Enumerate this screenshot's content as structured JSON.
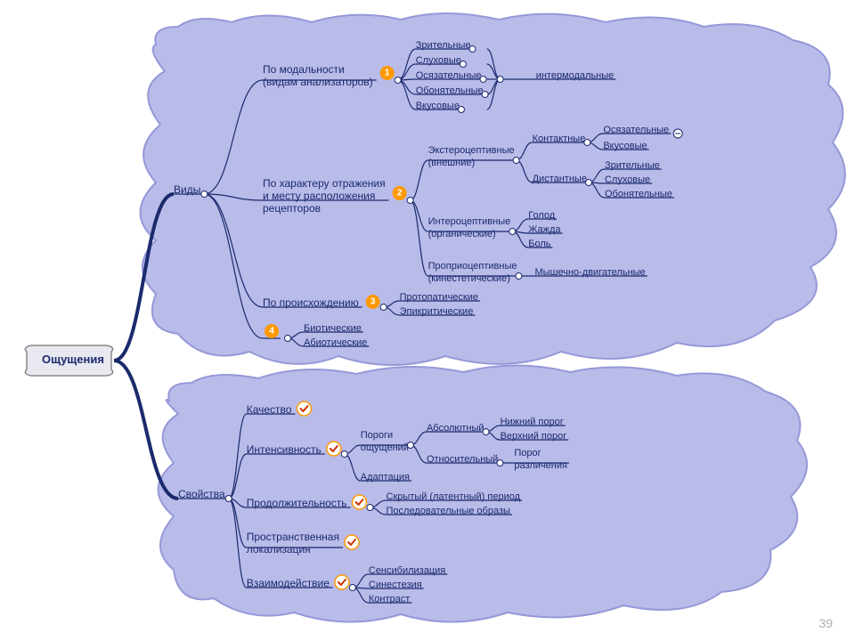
{
  "diagram_type": "mindmap",
  "colors": {
    "background": "#ffffff",
    "cloud_fill": "#b6b8e8",
    "cloud_stroke": "#9193d6",
    "text": "#1a2a6c",
    "edge": "#1a2a6c",
    "badge_fill": "#ff9900",
    "badge_text": "#ffffff",
    "check_stroke": "#ff9900",
    "check_mark": "#cc3300",
    "root_fill": "#e8e8f0",
    "root_stroke": "#888888",
    "page_num_color": "#b0b0b0"
  },
  "typography": {
    "node_fontsize": 12,
    "leaf_fontsize": 11,
    "root_fontsize": 13
  },
  "page_number": "39",
  "root": {
    "label": "Ощущения"
  },
  "branches": [
    {
      "label": "Виды",
      "children": [
        {
          "label_lines": [
            "По модальности",
            "(видам анализаторов)"
          ],
          "badge": "1",
          "children": [
            {
              "label": "Зрительные"
            },
            {
              "label": "Слуховые"
            },
            {
              "label": "Осязательные",
              "children": [
                {
                  "label": "интермодальные"
                }
              ],
              "shared_child": true
            },
            {
              "label": "Обонятельные"
            },
            {
              "label": "Вкусовые"
            }
          ]
        },
        {
          "label_lines": [
            "По характеру отражения",
            "и месту расположения",
            "рецепторов"
          ],
          "badge": "2",
          "children": [
            {
              "label_lines": [
                "Экстероцептивные",
                "(внешние)"
              ],
              "children": [
                {
                  "label": "Контактные",
                  "children": [
                    {
                      "label": "Осязательные",
                      "toggle": true
                    },
                    {
                      "label": "Вкусовые"
                    }
                  ]
                },
                {
                  "label": "Дистантные",
                  "children": [
                    {
                      "label": "Зрительные"
                    },
                    {
                      "label": "Слуховые"
                    },
                    {
                      "label": "Обонятельные"
                    }
                  ]
                }
              ]
            },
            {
              "label_lines": [
                "Интероцептивные",
                "(органические)"
              ],
              "children": [
                {
                  "label": "Голод"
                },
                {
                  "label": "Жажда"
                },
                {
                  "label": "Боль"
                }
              ]
            },
            {
              "label_lines": [
                "Проприоцептивные",
                "(кинестетические)"
              ],
              "children": [
                {
                  "label": "Мышечно-двигательные"
                }
              ]
            }
          ]
        },
        {
          "label": "По происхождению",
          "badge": "3",
          "children": [
            {
              "label": "Протопатические"
            },
            {
              "label": "Эпикритические"
            }
          ]
        },
        {
          "label": "",
          "badge": "4",
          "children": [
            {
              "label": "Биотические"
            },
            {
              "label": "Абиотические"
            }
          ]
        }
      ]
    },
    {
      "label": "Свойства",
      "children": [
        {
          "label": "Качество",
          "check": true
        },
        {
          "label": "Интенсивность",
          "check": true,
          "children": [
            {
              "label_lines": [
                "Пороги",
                "ощущений"
              ],
              "children": [
                {
                  "label": "Абсолютный",
                  "children": [
                    {
                      "label": "Нижний порог"
                    },
                    {
                      "label": "Верхний порог"
                    }
                  ]
                },
                {
                  "label": "Относительный",
                  "children": [
                    {
                      "label_lines": [
                        "Порог",
                        "различения"
                      ]
                    }
                  ]
                }
              ]
            },
            {
              "label": "Адаптация"
            }
          ]
        },
        {
          "label": "Продолжительность",
          "check": true,
          "children": [
            {
              "label": "Скрытый (латентный) период"
            },
            {
              "label": "Последовательные образы"
            }
          ]
        },
        {
          "label_lines": [
            "Пространственная",
            "локализация"
          ],
          "check": true
        },
        {
          "label": "Взаимодействие",
          "check": true,
          "children": [
            {
              "label": "Сенсибилизация"
            },
            {
              "label": "Синестезия"
            },
            {
              "label": "Контраст"
            }
          ]
        }
      ]
    }
  ]
}
